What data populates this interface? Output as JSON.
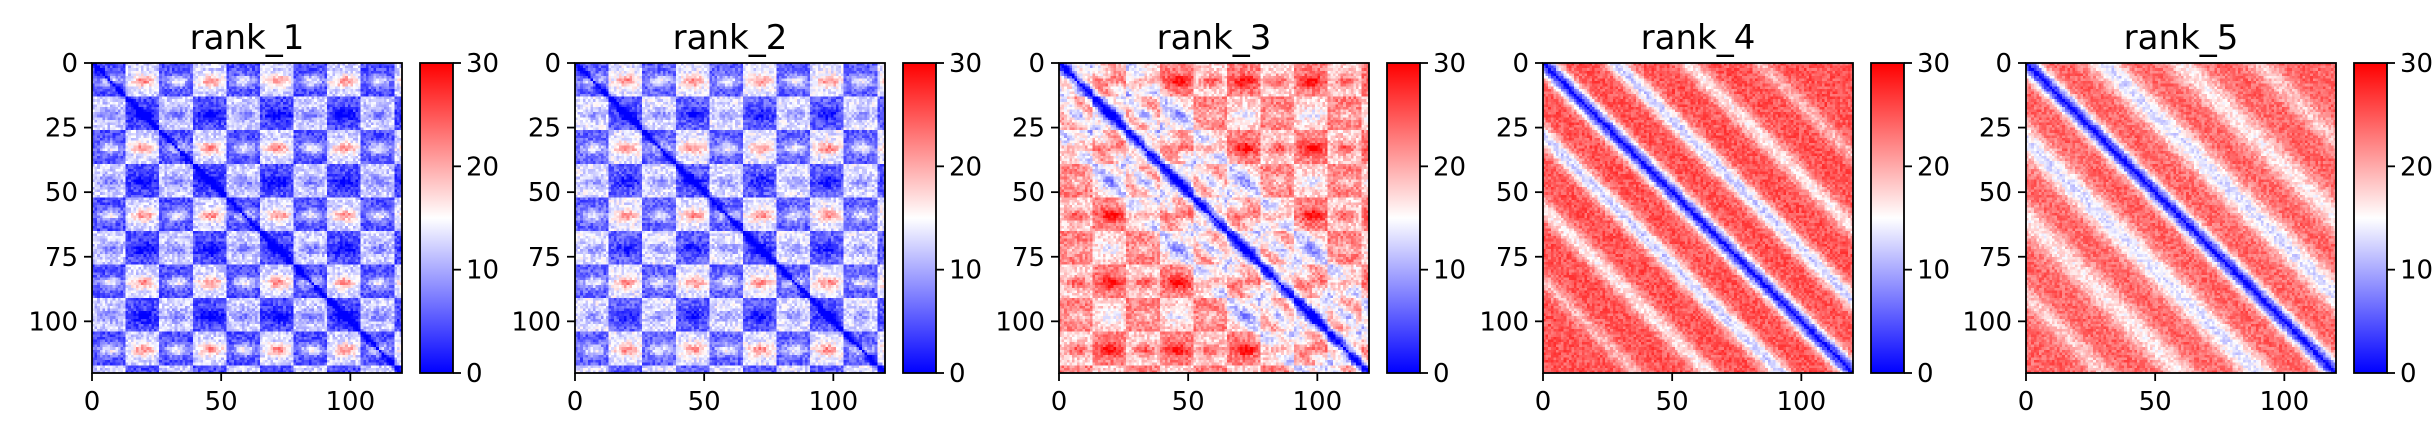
{
  "chart_data": [
    {
      "type": "heatmap",
      "title": "rank_1",
      "xticks": [
        0,
        50,
        100
      ],
      "yticks": [
        0,
        25,
        50,
        75,
        100
      ],
      "xlim": [
        0,
        120
      ],
      "ylim": [
        120,
        0
      ],
      "n": 120,
      "colorbar": {
        "ticks": [
          0,
          10,
          20,
          30
        ],
        "range": [
          0,
          30
        ],
        "colors": [
          "#0000ff",
          "#ffffff",
          "#ff0000"
        ]
      },
      "pattern": {
        "base": 8.5,
        "diag_width": 1.2,
        "diag_strength": 7,
        "block": 13,
        "band": 11,
        "band_strength": 9,
        "offdiag": [],
        "noise": 3
      }
    },
    {
      "type": "heatmap",
      "title": "rank_2",
      "xticks": [
        0,
        50,
        100
      ],
      "yticks": [
        0,
        25,
        50,
        75,
        100
      ],
      "xlim": [
        0,
        120
      ],
      "ylim": [
        120,
        0
      ],
      "n": 120,
      "colorbar": {
        "ticks": [
          0,
          10,
          20,
          30
        ],
        "range": [
          0,
          30
        ],
        "colors": [
          "#0000ff",
          "#ffffff",
          "#ff0000"
        ]
      },
      "pattern": {
        "base": 9.5,
        "diag_width": 1.3,
        "diag_strength": 8,
        "block": 13,
        "band": 11,
        "band_strength": 8,
        "offdiag": [],
        "noise": 3
      }
    },
    {
      "type": "heatmap",
      "title": "rank_3",
      "xticks": [
        0,
        50,
        100
      ],
      "yticks": [
        0,
        25,
        50,
        75,
        100
      ],
      "xlim": [
        0,
        120
      ],
      "ylim": [
        120,
        0
      ],
      "n": 120,
      "colorbar": {
        "ticks": [
          0,
          10,
          20,
          30
        ],
        "range": [
          0,
          30
        ],
        "colors": [
          "#0000ff",
          "#ffffff",
          "#ff0000"
        ]
      },
      "pattern": {
        "base": 20,
        "diag_width": 2.5,
        "diag_strength": 18,
        "block": 13,
        "band": 7,
        "band_strength": 7,
        "offdiag": [
          {
            "offset": 13,
            "width": 3,
            "strength": 8
          },
          {
            "offset": 26,
            "width": 3,
            "strength": 6
          }
        ],
        "noise": 3
      }
    },
    {
      "type": "heatmap",
      "title": "rank_4",
      "xticks": [
        0,
        50,
        100
      ],
      "yticks": [
        0,
        25,
        50,
        75,
        100
      ],
      "xlim": [
        0,
        120
      ],
      "ylim": [
        120,
        0
      ],
      "n": 120,
      "colorbar": {
        "ticks": [
          0,
          10,
          20,
          30
        ],
        "range": [
          0,
          30
        ],
        "colors": [
          "#0000ff",
          "#ffffff",
          "#ff0000"
        ]
      },
      "pattern": {
        "base": 25,
        "diag_width": 3.5,
        "diag_strength": 23,
        "block": 0,
        "band": 0,
        "band_strength": 0,
        "offdiag": [
          {
            "offset": 28,
            "width": 3.5,
            "strength": 13
          },
          {
            "offset": 56,
            "width": 3.5,
            "strength": 9
          },
          {
            "offset": 84,
            "width": 3,
            "strength": 6
          }
        ],
        "noise": 2.5
      }
    },
    {
      "type": "heatmap",
      "title": "rank_5",
      "xticks": [
        0,
        50,
        100
      ],
      "yticks": [
        0,
        25,
        50,
        75,
        100
      ],
      "xlim": [
        0,
        120
      ],
      "ylim": [
        120,
        0
      ],
      "n": 120,
      "colorbar": {
        "ticks": [
          0,
          10,
          20,
          30
        ],
        "range": [
          0,
          30
        ],
        "colors": [
          "#0000ff",
          "#ffffff",
          "#ff0000"
        ]
      },
      "pattern": {
        "base": 24,
        "diag_width": 3.5,
        "diag_strength": 22,
        "block": 0,
        "band": 0,
        "band_strength": 0,
        "offdiag": [
          {
            "offset": 30,
            "width": 5,
            "strength": 11
          },
          {
            "offset": 60,
            "width": 5,
            "strength": 8
          },
          {
            "offset": 90,
            "width": 4,
            "strength": 6
          }
        ],
        "noise": 2.5
      }
    }
  ]
}
